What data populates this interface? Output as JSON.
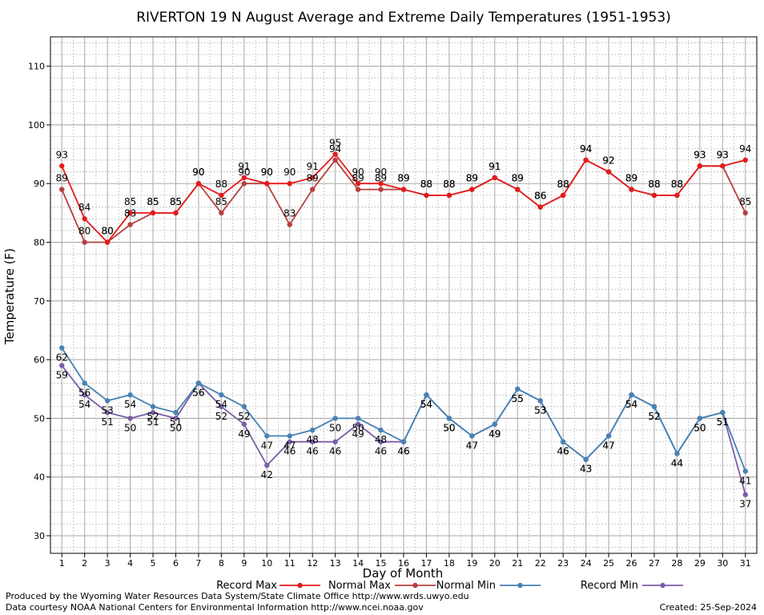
{
  "chart_data": {
    "type": "line",
    "title": "RIVERTON 19 N August Average and Extreme Daily Temperatures (1951-1953)",
    "xlabel": "Day of Month",
    "ylabel": "Temperature (F)",
    "xlim": [
      0.5,
      31.5
    ],
    "ylim": [
      27,
      115
    ],
    "yticks": [
      30,
      40,
      50,
      60,
      70,
      80,
      90,
      100,
      110
    ],
    "x": [
      1,
      2,
      3,
      4,
      5,
      6,
      7,
      8,
      9,
      10,
      11,
      12,
      13,
      14,
      15,
      16,
      17,
      18,
      19,
      20,
      21,
      22,
      23,
      24,
      25,
      26,
      27,
      28,
      29,
      30,
      31
    ],
    "grid": true,
    "legend_position": "bottom",
    "series": [
      {
        "name": "Record Max",
        "color": "#e41a1c",
        "values": [
          93,
          84,
          80,
          85,
          85,
          85,
          90,
          88,
          91,
          90,
          90,
          91,
          95,
          90,
          90,
          89,
          88,
          88,
          89,
          91,
          89,
          86,
          88,
          94,
          92,
          89,
          88,
          88,
          93,
          93,
          94
        ]
      },
      {
        "name": "Normal Max",
        "color": "#b5403e",
        "values": [
          89,
          80,
          80,
          83,
          85,
          85,
          90,
          85,
          90,
          90,
          83,
          89,
          94,
          89,
          89,
          89,
          88,
          88,
          89,
          91,
          89,
          86,
          88,
          94,
          92,
          89,
          88,
          88,
          93,
          93,
          85
        ]
      },
      {
        "name": "Normal Min",
        "color": "#4682b4",
        "values": [
          62,
          56,
          53,
          54,
          52,
          51,
          56,
          54,
          52,
          47,
          47,
          48,
          50,
          50,
          48,
          46,
          54,
          50,
          47,
          49,
          55,
          53,
          46,
          43,
          47,
          54,
          52,
          44,
          50,
          51,
          41
        ]
      },
      {
        "name": "Record Min",
        "color": "#7b5ea7",
        "values": [
          59,
          54,
          51,
          50,
          51,
          50,
          56,
          52,
          49,
          42,
          46,
          46,
          46,
          49,
          46,
          46,
          54,
          50,
          47,
          49,
          55,
          53,
          46,
          43,
          47,
          54,
          52,
          44,
          50,
          51,
          37
        ]
      }
    ]
  },
  "footer": {
    "produced_by": "Produced by the Wyoming Water Resources Data System/State Climate Office http://www.wrds.uwyo.edu",
    "data_courtesy": "Data courtesy NOAA National Centers for Environmental Information http://www.ncei.noaa.gov",
    "created": "Created:  25-Sep-2024"
  }
}
